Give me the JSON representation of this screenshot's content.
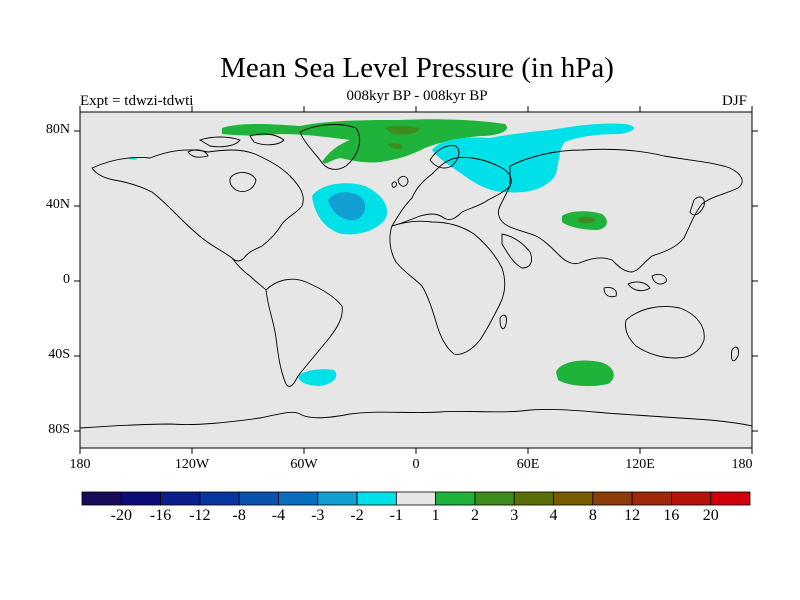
{
  "title": "Mean Sea Level Pressure (in hPa)",
  "left_subtitle": "Expt = tdwzi-tdwti",
  "center_subtitle": "008kyr BP - 008kyr BP",
  "right_subtitle": "DJF",
  "lat_labels": [
    "80N",
    "40N",
    "0",
    "40S",
    "80S"
  ],
  "lon_labels": [
    "180",
    "120W",
    "60W",
    "0",
    "60E",
    "120E",
    "180"
  ],
  "colorbar": {
    "labels": [
      "-20",
      "-16",
      "-12",
      "-8",
      "-4",
      "-3",
      "-2",
      "-1",
      "1",
      "2",
      "3",
      "4",
      "8",
      "12",
      "16",
      "20"
    ],
    "colors": [
      "#1a0a5a",
      "#0c0e78",
      "#0a1e8c",
      "#0836a0",
      "#0a52b0",
      "#0a6ec0",
      "#12a0d2",
      "#00e0e8",
      "#e6e6e6",
      "#1fb33c",
      "#3c8c1e",
      "#5a6e0a",
      "#785a00",
      "#8c3c08",
      "#a0280a",
      "#b4140a",
      "#d2000a"
    ]
  },
  "colors": {
    "ocean_land_bg": "#e6e6e6",
    "light_positive": "#1fb33c",
    "mid_positive": "#3c8c1e",
    "light_negative": "#00e0e8",
    "mid_negative": "#12a0d2"
  }
}
